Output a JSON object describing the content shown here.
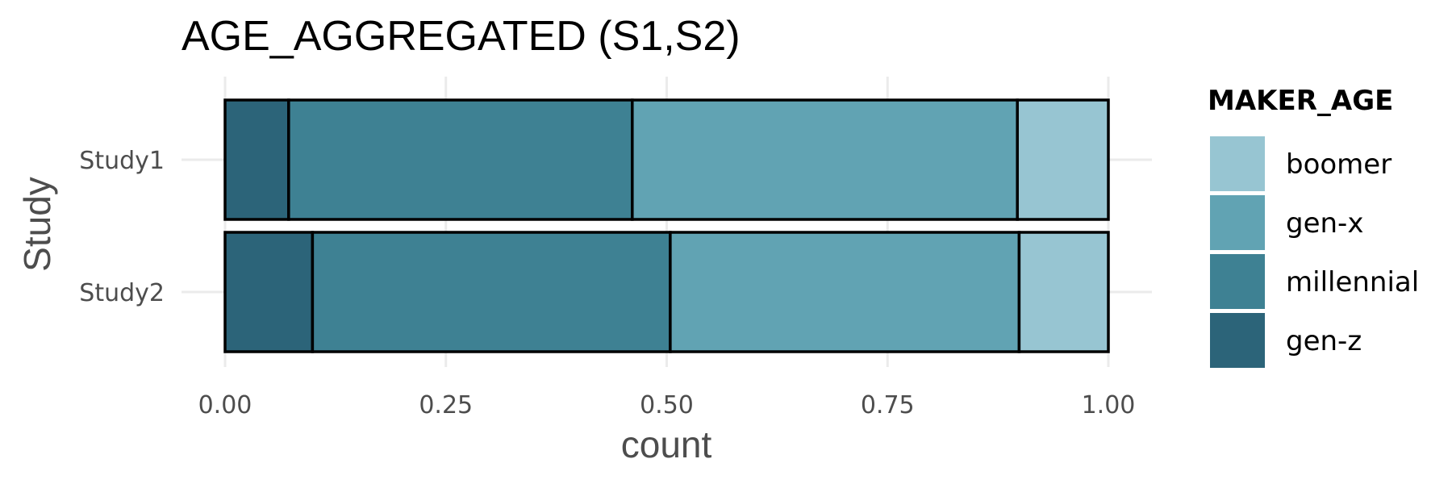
{
  "chart_data": {
    "type": "bar",
    "orientation": "horizontal",
    "stacked": true,
    "title": "AGE_AGGREGATED (S1,S2)",
    "xlabel": "count",
    "ylabel": "Study",
    "xlim": [
      0,
      1
    ],
    "x_ticks": [
      "0.00",
      "0.25",
      "0.50",
      "0.75",
      "1.00"
    ],
    "categories": [
      "Study1",
      "Study2"
    ],
    "series": [
      {
        "name": "gen-z",
        "values": [
          0.072,
          0.099
        ],
        "color": "#2c6479"
      },
      {
        "name": "millennial",
        "values": [
          0.389,
          0.405
        ],
        "color": "#3e8193"
      },
      {
        "name": "gen-x",
        "values": [
          0.436,
          0.395
        ],
        "color": "#61a3b3"
      },
      {
        "name": "boomer",
        "values": [
          0.103,
          0.101
        ],
        "color": "#97c5d2"
      }
    ],
    "legend": {
      "title": "MAKER_AGE",
      "position": "right",
      "order": [
        "boomer",
        "gen-x",
        "millennial",
        "gen-z"
      ]
    },
    "grid": true
  }
}
